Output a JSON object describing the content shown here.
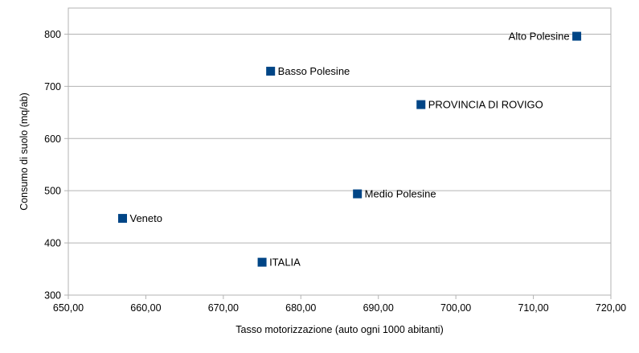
{
  "chart_data": {
    "type": "scatter",
    "title": "",
    "xlabel": "Tasso motorizzazione (auto ogni 1000 abitanti)",
    "ylabel": "Consumo di suolo (mq/ab)",
    "xlim": [
      650,
      720
    ],
    "ylim": [
      300,
      850
    ],
    "x_ticks": [
      "650,00",
      "660,00",
      "670,00",
      "680,00",
      "690,00",
      "700,00",
      "710,00",
      "720,00"
    ],
    "y_ticks": [
      "300",
      "400",
      "500",
      "600",
      "700",
      "800"
    ],
    "grid": true,
    "marker_color": "#004586",
    "points": [
      {
        "label": "Alto Polesine",
        "x": 715.6,
        "y": 796,
        "label_side": "left"
      },
      {
        "label": "Basso Polesine",
        "x": 676.1,
        "y": 729,
        "label_side": "right"
      },
      {
        "label": "PROVINCIA DI ROVIGO",
        "x": 695.5,
        "y": 665,
        "label_side": "right"
      },
      {
        "label": "Medio Polesine",
        "x": 687.3,
        "y": 494,
        "label_side": "right"
      },
      {
        "label": "Veneto",
        "x": 657.0,
        "y": 447,
        "label_side": "right"
      },
      {
        "label": "ITALIA",
        "x": 675.0,
        "y": 363,
        "label_side": "right"
      }
    ]
  }
}
